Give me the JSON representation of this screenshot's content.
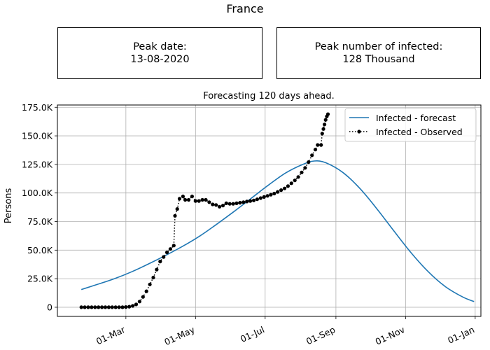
{
  "figure": {
    "title": "France",
    "peak_date_label": "Peak date:",
    "peak_date_value": "13-08-2020",
    "peak_infected_label": "Peak number of infected:",
    "peak_infected_value": "128 Thousand"
  },
  "chart_data": {
    "type": "line",
    "title": "Forecasting 120 days ahead.",
    "xlabel": "",
    "ylabel": "Persons",
    "x_axis_type": "date",
    "xlim": [
      "2020-01-01",
      "2021-01-06"
    ],
    "ylim": [
      -8000,
      177000
    ],
    "grid": true,
    "legend_position": "top-right",
    "x_ticks": [
      {
        "date": "2020-03-01",
        "label": "01-Mar"
      },
      {
        "date": "2020-05-01",
        "label": "01-May"
      },
      {
        "date": "2020-07-01",
        "label": "01-Jul"
      },
      {
        "date": "2020-09-01",
        "label": "01-Sep"
      },
      {
        "date": "2020-11-01",
        "label": "01-Nov"
      },
      {
        "date": "2021-01-01",
        "label": "01-Jan"
      }
    ],
    "y_ticks": [
      {
        "value": 0,
        "label": "0"
      },
      {
        "value": 25000,
        "label": "25.0K"
      },
      {
        "value": 50000,
        "label": "50.0K"
      },
      {
        "value": 75000,
        "label": "75.0K"
      },
      {
        "value": 100000,
        "label": "100.0K"
      },
      {
        "value": 125000,
        "label": "125.0K"
      },
      {
        "value": 150000,
        "label": "150.0K"
      },
      {
        "value": 175000,
        "label": "175.0K"
      }
    ],
    "series": [
      {
        "name": "Infected - forecast",
        "color": "#1f77b4",
        "style": "solid",
        "points": [
          [
            "2020-01-22",
            15500
          ],
          [
            "2020-02-05",
            20000
          ],
          [
            "2020-02-20",
            25000
          ],
          [
            "2020-03-06",
            31000
          ],
          [
            "2020-03-21",
            38000
          ],
          [
            "2020-04-05",
            45500
          ],
          [
            "2020-04-20",
            53500
          ],
          [
            "2020-05-05",
            62500
          ],
          [
            "2020-05-20",
            73000
          ],
          [
            "2020-06-04",
            84000
          ],
          [
            "2020-06-19",
            95500
          ],
          [
            "2020-07-04",
            107000
          ],
          [
            "2020-07-19",
            117500
          ],
          [
            "2020-08-03",
            125000
          ],
          [
            "2020-08-13",
            128000
          ],
          [
            "2020-08-23",
            126500
          ],
          [
            "2020-09-07",
            118000
          ],
          [
            "2020-09-22",
            104000
          ],
          [
            "2020-10-07",
            86000
          ],
          [
            "2020-10-22",
            66500
          ],
          [
            "2020-11-06",
            47500
          ],
          [
            "2020-11-21",
            31000
          ],
          [
            "2020-12-06",
            18000
          ],
          [
            "2020-12-21",
            9000
          ],
          [
            "2020-12-31",
            5000
          ]
        ]
      },
      {
        "name": "Infected - Observed",
        "color": "#000000",
        "style": "dotted-with-markers",
        "points": [
          [
            "2020-01-22",
            0
          ],
          [
            "2020-01-25",
            0
          ],
          [
            "2020-01-28",
            0
          ],
          [
            "2020-01-31",
            0
          ],
          [
            "2020-02-03",
            0
          ],
          [
            "2020-02-06",
            0
          ],
          [
            "2020-02-09",
            0
          ],
          [
            "2020-02-12",
            0
          ],
          [
            "2020-02-15",
            0
          ],
          [
            "2020-02-18",
            0
          ],
          [
            "2020-02-21",
            0
          ],
          [
            "2020-02-24",
            0
          ],
          [
            "2020-02-27",
            0
          ],
          [
            "2020-03-01",
            200
          ],
          [
            "2020-03-04",
            500
          ],
          [
            "2020-03-07",
            1200
          ],
          [
            "2020-03-10",
            2500
          ],
          [
            "2020-03-13",
            5000
          ],
          [
            "2020-03-16",
            9000
          ],
          [
            "2020-03-19",
            14000
          ],
          [
            "2020-03-22",
            20000
          ],
          [
            "2020-03-25",
            26000
          ],
          [
            "2020-03-28",
            33000
          ],
          [
            "2020-03-31",
            40000
          ],
          [
            "2020-04-03",
            44000
          ],
          [
            "2020-04-06",
            48000
          ],
          [
            "2020-04-09",
            51000
          ],
          [
            "2020-04-12",
            54000
          ],
          [
            "2020-04-13",
            80000
          ],
          [
            "2020-04-15",
            86000
          ],
          [
            "2020-04-17",
            95000
          ],
          [
            "2020-04-20",
            97000
          ],
          [
            "2020-04-22",
            94000
          ],
          [
            "2020-04-25",
            94000
          ],
          [
            "2020-04-28",
            97000
          ],
          [
            "2020-05-01",
            93000
          ],
          [
            "2020-05-04",
            93000
          ],
          [
            "2020-05-07",
            94000
          ],
          [
            "2020-05-10",
            94000
          ],
          [
            "2020-05-13",
            92000
          ],
          [
            "2020-05-16",
            90000
          ],
          [
            "2020-05-19",
            89500
          ],
          [
            "2020-05-22",
            88000
          ],
          [
            "2020-05-25",
            89000
          ],
          [
            "2020-05-28",
            91000
          ],
          [
            "2020-05-31",
            90500
          ],
          [
            "2020-06-03",
            90500
          ],
          [
            "2020-06-06",
            91000
          ],
          [
            "2020-06-09",
            91500
          ],
          [
            "2020-06-12",
            92000
          ],
          [
            "2020-06-15",
            92500
          ],
          [
            "2020-06-18",
            93000
          ],
          [
            "2020-06-21",
            93500
          ],
          [
            "2020-06-24",
            94500
          ],
          [
            "2020-06-27",
            95500
          ],
          [
            "2020-06-30",
            96500
          ],
          [
            "2020-07-03",
            97500
          ],
          [
            "2020-07-06",
            98500
          ],
          [
            "2020-07-09",
            99500
          ],
          [
            "2020-07-12",
            101000
          ],
          [
            "2020-07-15",
            102500
          ],
          [
            "2020-07-18",
            104000
          ],
          [
            "2020-07-21",
            106000
          ],
          [
            "2020-07-24",
            108500
          ],
          [
            "2020-07-27",
            111000
          ],
          [
            "2020-07-30",
            114000
          ],
          [
            "2020-08-02",
            118000
          ],
          [
            "2020-08-05",
            122000
          ],
          [
            "2020-08-08",
            127000
          ],
          [
            "2020-08-11",
            133000
          ],
          [
            "2020-08-14",
            138000
          ],
          [
            "2020-08-16",
            142000
          ],
          [
            "2020-08-19",
            142000
          ],
          [
            "2020-08-20",
            152000
          ],
          [
            "2020-08-21",
            156000
          ],
          [
            "2020-08-22",
            160000
          ],
          [
            "2020-08-23",
            164000
          ],
          [
            "2020-08-24",
            167000
          ],
          [
            "2020-08-25",
            169000
          ]
        ]
      }
    ]
  }
}
